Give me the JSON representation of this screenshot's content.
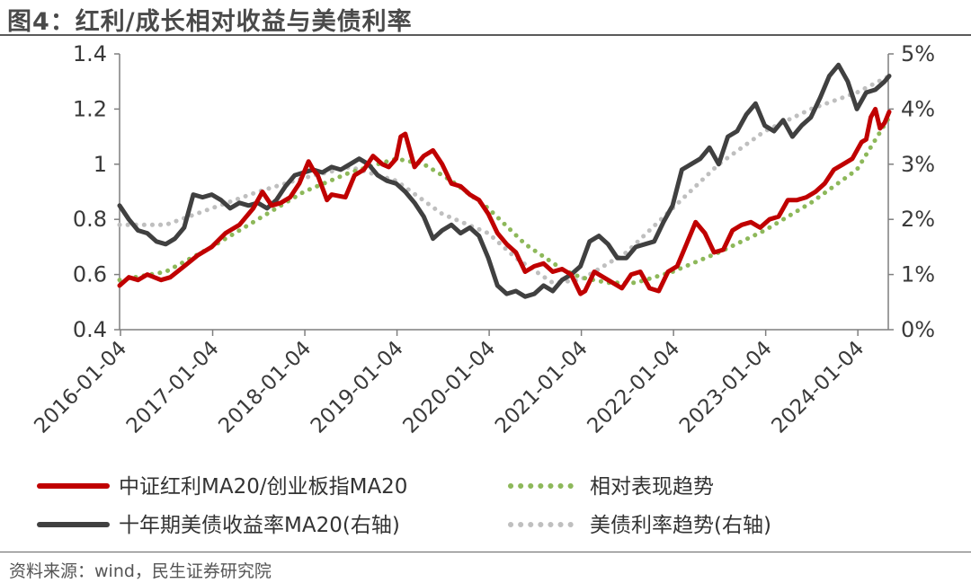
{
  "title": "图4：红利/成长相对收益与美债利率",
  "source": "资料来源：wind，民生证券研究院",
  "chart_data": {
    "type": "line",
    "title": "图4：红利/成长相对收益与美债利率",
    "xlabel": "",
    "x_ticks": [
      "2016-01-04",
      "2017-01-04",
      "2018-01-04",
      "2019-01-04",
      "2020-01-04",
      "2021-01-04",
      "2022-01-04",
      "2023-01-04",
      "2024-01-04"
    ],
    "x_range": [
      2016.0,
      2024.35
    ],
    "y_left": {
      "range": [
        0.4,
        1.4
      ],
      "ticks": [
        0.4,
        0.6,
        0.8,
        1,
        1.2,
        1.4
      ],
      "tick_labels": [
        "0.4",
        "0.6",
        "0.8",
        "1",
        "1.2",
        "1.4"
      ]
    },
    "y_right": {
      "range": [
        0,
        5
      ],
      "ticks": [
        0,
        1,
        2,
        3,
        4,
        5
      ],
      "tick_labels": [
        "0%",
        "1%",
        "2%",
        "3%",
        "4%",
        "5%"
      ]
    },
    "series": [
      {
        "name": "中证红利MA20/创业板指MA20",
        "axis": "left",
        "style": "solid",
        "color": "#c00000",
        "x": [
          2016.0,
          2016.1,
          2016.2,
          2016.3,
          2016.45,
          2016.55,
          2016.7,
          2016.85,
          2017.0,
          2017.15,
          2017.3,
          2017.45,
          2017.55,
          2017.65,
          2017.75,
          2017.85,
          2017.95,
          2018.05,
          2018.1,
          2018.15,
          2018.25,
          2018.3,
          2018.45,
          2018.55,
          2018.65,
          2018.75,
          2018.85,
          2018.92,
          2019.0,
          2019.05,
          2019.1,
          2019.2,
          2019.3,
          2019.4,
          2019.5,
          2019.6,
          2019.7,
          2019.8,
          2019.9,
          2020.0,
          2020.1,
          2020.2,
          2020.3,
          2020.4,
          2020.5,
          2020.6,
          2020.7,
          2020.8,
          2020.9,
          2021.0,
          2021.05,
          2021.15,
          2021.3,
          2021.45,
          2021.55,
          2021.65,
          2021.75,
          2021.85,
          2021.95,
          2022.05,
          2022.15,
          2022.25,
          2022.35,
          2022.45,
          2022.55,
          2022.65,
          2022.75,
          2022.85,
          2022.95,
          2023.05,
          2023.15,
          2023.25,
          2023.35,
          2023.45,
          2023.55,
          2023.65,
          2023.75,
          2023.85,
          2023.95,
          2024.05,
          2024.1,
          2024.15,
          2024.2,
          2024.25,
          2024.3,
          2024.35
        ],
        "values": [
          0.56,
          0.59,
          0.58,
          0.6,
          0.58,
          0.59,
          0.63,
          0.67,
          0.7,
          0.75,
          0.78,
          0.84,
          0.9,
          0.85,
          0.86,
          0.88,
          0.93,
          1.01,
          0.98,
          0.96,
          0.87,
          0.89,
          0.88,
          0.96,
          0.98,
          1.03,
          1.0,
          0.99,
          1.02,
          1.1,
          1.11,
          0.99,
          1.03,
          1.05,
          1.0,
          0.93,
          0.92,
          0.89,
          0.87,
          0.82,
          0.75,
          0.71,
          0.68,
          0.61,
          0.63,
          0.64,
          0.61,
          0.62,
          0.6,
          0.53,
          0.54,
          0.61,
          0.58,
          0.55,
          0.6,
          0.61,
          0.55,
          0.54,
          0.61,
          0.63,
          0.71,
          0.79,
          0.75,
          0.68,
          0.69,
          0.76,
          0.78,
          0.79,
          0.77,
          0.8,
          0.81,
          0.87,
          0.87,
          0.88,
          0.9,
          0.93,
          0.98,
          1.0,
          1.02,
          1.08,
          1.09,
          1.17,
          1.2,
          1.13,
          1.15,
          1.19
        ]
      },
      {
        "name": "相对表现趋势",
        "axis": "left",
        "style": "dotted",
        "color": "#8db85a",
        "x": [
          2016.0,
          2016.5,
          2017.0,
          2017.5,
          2018.0,
          2018.5,
          2019.0,
          2019.3,
          2019.6,
          2020.0,
          2020.4,
          2020.8,
          2021.0,
          2021.3,
          2021.6,
          2022.0,
          2022.5,
          2023.0,
          2023.5,
          2024.0,
          2024.35
        ],
        "values": [
          0.58,
          0.61,
          0.7,
          0.8,
          0.9,
          0.97,
          1.02,
          1.0,
          0.94,
          0.84,
          0.71,
          0.62,
          0.59,
          0.57,
          0.57,
          0.61,
          0.68,
          0.76,
          0.86,
          0.98,
          1.17
        ]
      },
      {
        "name": "十年期美债收益率MA20(右轴)",
        "axis": "right",
        "style": "solid",
        "color": "#404040",
        "x": [
          2016.0,
          2016.1,
          2016.2,
          2016.3,
          2016.4,
          2016.5,
          2016.6,
          2016.7,
          2016.8,
          2016.9,
          2017.0,
          2017.1,
          2017.2,
          2017.3,
          2017.4,
          2017.5,
          2017.6,
          2017.7,
          2017.8,
          2017.9,
          2018.0,
          2018.1,
          2018.2,
          2018.3,
          2018.4,
          2018.5,
          2018.6,
          2018.7,
          2018.8,
          2018.9,
          2019.0,
          2019.1,
          2019.2,
          2019.3,
          2019.4,
          2019.5,
          2019.6,
          2019.7,
          2019.8,
          2019.9,
          2020.0,
          2020.1,
          2020.2,
          2020.3,
          2020.4,
          2020.5,
          2020.6,
          2020.7,
          2020.8,
          2020.9,
          2021.0,
          2021.1,
          2021.2,
          2021.3,
          2021.4,
          2021.5,
          2021.6,
          2021.7,
          2021.8,
          2021.9,
          2022.0,
          2022.1,
          2022.2,
          2022.3,
          2022.4,
          2022.5,
          2022.6,
          2022.7,
          2022.8,
          2022.9,
          2023.0,
          2023.1,
          2023.2,
          2023.3,
          2023.4,
          2023.5,
          2023.6,
          2023.7,
          2023.8,
          2023.9,
          2024.0,
          2024.1,
          2024.2,
          2024.3,
          2024.35
        ],
        "values": [
          2.25,
          2.0,
          1.8,
          1.75,
          1.6,
          1.55,
          1.65,
          1.85,
          2.45,
          2.4,
          2.45,
          2.35,
          2.2,
          2.3,
          2.25,
          2.3,
          2.2,
          2.35,
          2.6,
          2.8,
          2.85,
          2.9,
          2.85,
          2.95,
          2.9,
          3.0,
          3.1,
          3.0,
          2.8,
          2.7,
          2.65,
          2.5,
          2.3,
          2.05,
          1.65,
          1.8,
          1.9,
          1.75,
          1.85,
          1.7,
          1.3,
          0.8,
          0.65,
          0.7,
          0.6,
          0.65,
          0.8,
          0.7,
          0.9,
          1.0,
          1.15,
          1.6,
          1.7,
          1.55,
          1.3,
          1.3,
          1.5,
          1.55,
          1.6,
          1.95,
          2.25,
          2.9,
          3.0,
          3.1,
          3.3,
          3.0,
          3.5,
          3.6,
          3.9,
          4.1,
          3.7,
          3.6,
          3.8,
          3.5,
          3.7,
          3.85,
          4.2,
          4.6,
          4.8,
          4.5,
          4.0,
          4.3,
          4.35,
          4.5,
          4.6
        ]
      },
      {
        "name": "美债利率趋势(右轴)",
        "axis": "right",
        "style": "dotted",
        "color": "#bfbfbf",
        "x": [
          2016.0,
          2016.5,
          2017.0,
          2017.5,
          2018.0,
          2018.5,
          2019.0,
          2019.5,
          2020.0,
          2020.3,
          2020.7,
          2021.0,
          2021.5,
          2022.0,
          2022.5,
          2023.0,
          2023.5,
          2024.0,
          2024.35
        ],
        "values": [
          1.9,
          1.9,
          2.2,
          2.5,
          2.75,
          2.95,
          2.7,
          2.1,
          1.75,
          1.3,
          0.85,
          0.9,
          1.4,
          2.2,
          3.0,
          3.6,
          4.0,
          4.3,
          4.6
        ]
      }
    ],
    "legend": {
      "placement": "bottom",
      "entries": [
        "中证红利MA20/创业板指MA20",
        "相对表现趋势",
        "十年期美债收益率MA20(右轴)",
        "美债利率趋势(右轴)"
      ]
    },
    "grid": false
  }
}
